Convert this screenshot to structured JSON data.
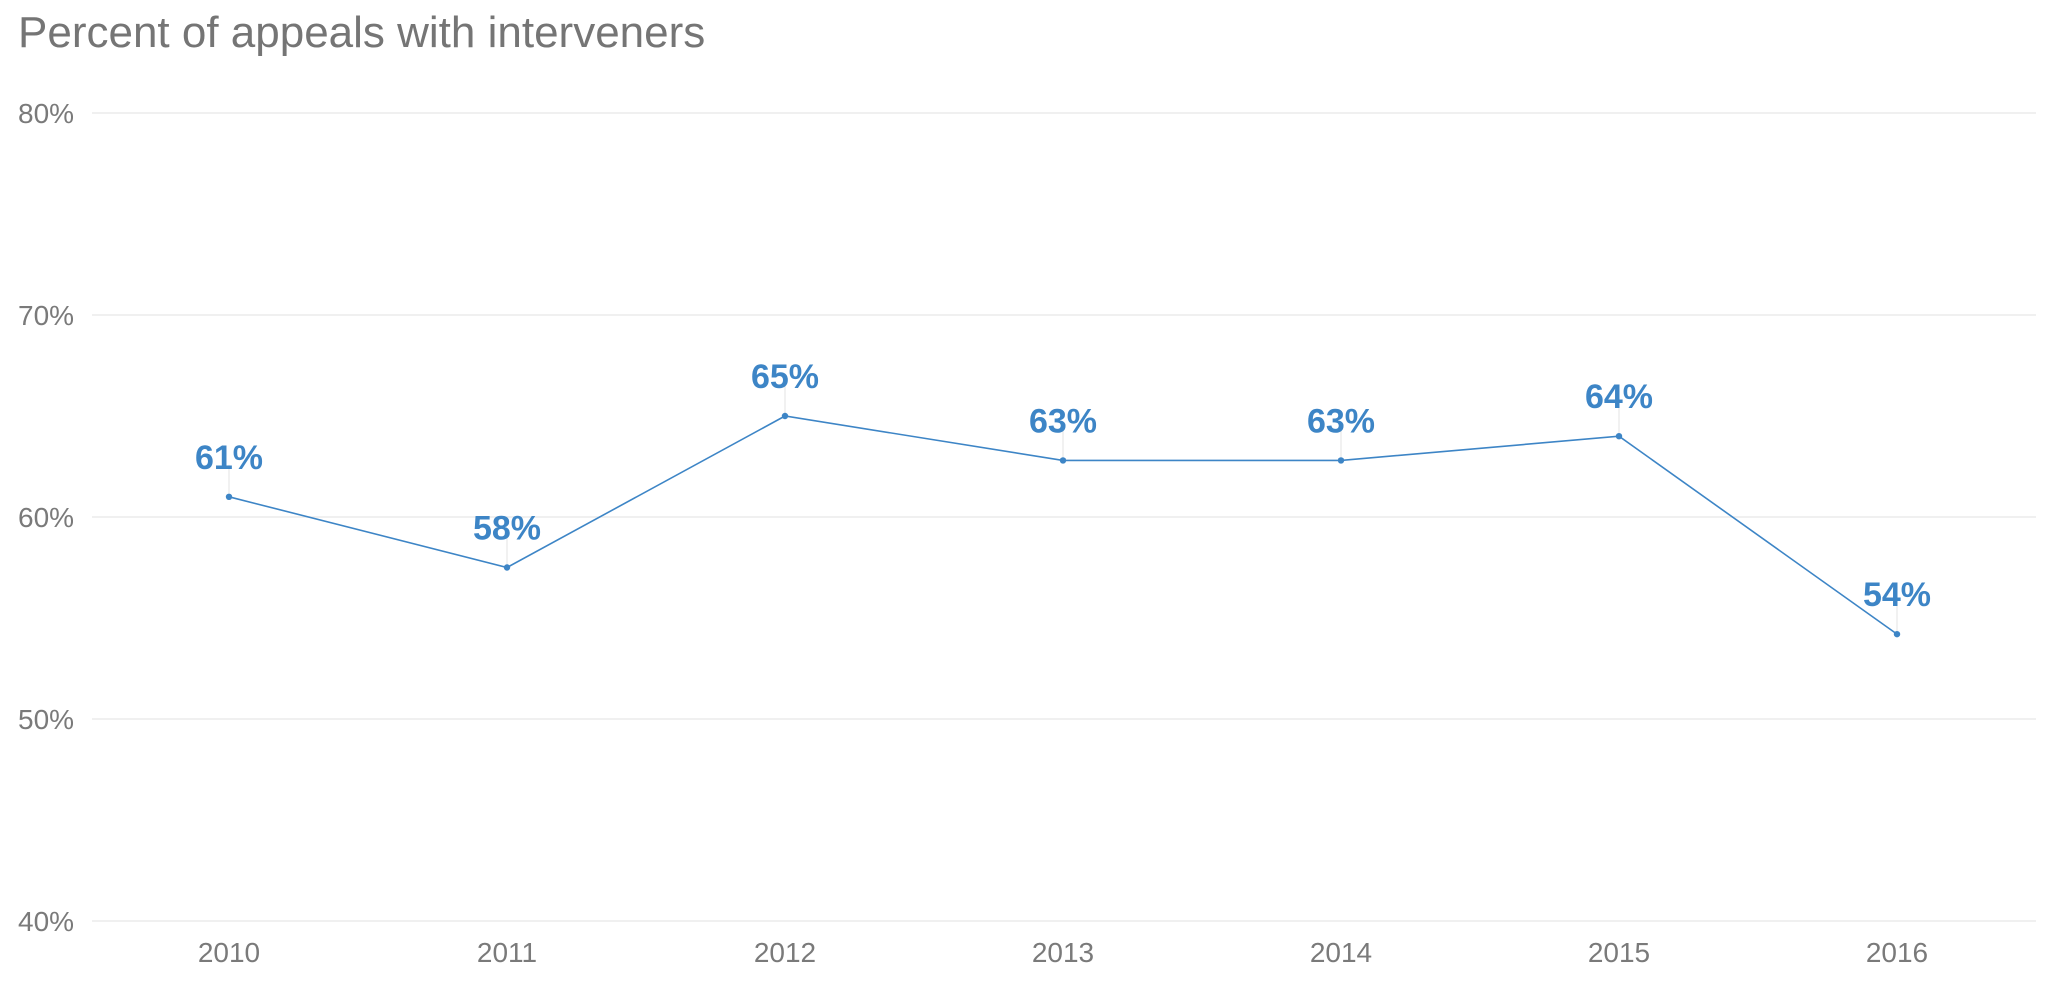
{
  "chart_data": {
    "type": "line",
    "title": "Percent of appeals with interveners",
    "categories": [
      "2010",
      "2011",
      "2012",
      "2013",
      "2014",
      "2015",
      "2016"
    ],
    "series": [
      {
        "values": [
          61,
          57.5,
          65,
          62.8,
          62.8,
          64,
          54.2
        ],
        "data_labels": [
          "61%",
          "58%",
          "65%",
          "63%",
          "63%",
          "64%",
          "54%"
        ]
      }
    ],
    "ylim": [
      40,
      80
    ],
    "yticks": [
      40,
      50,
      60,
      70,
      80
    ],
    "ytick_labels": [
      "40%",
      "50%",
      "60%",
      "70%",
      "80%"
    ],
    "grid": true,
    "legend": "none",
    "colors": {
      "line": "#3d85c6",
      "label": "#3d85c6",
      "grid": "#ececec",
      "text": "#7a7a7a"
    }
  }
}
